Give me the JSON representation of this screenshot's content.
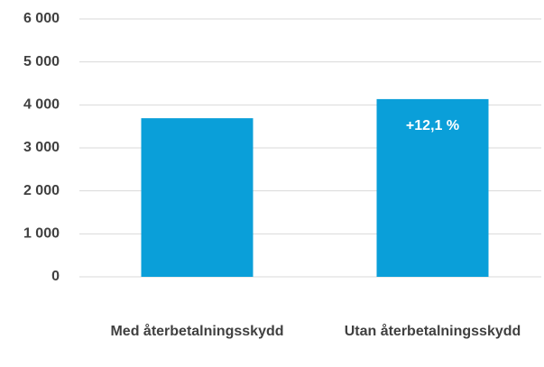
{
  "chart_data": {
    "type": "bar",
    "categories": [
      "Med återbetalningsskydd",
      "Utan återbetalningsskydd"
    ],
    "values": [
      3690,
      4135
    ],
    "color": "#0a9fd9",
    "annotations": [
      "+12,1 %"
    ],
    "ylim": [
      0,
      6000
    ],
    "yticks": [
      0,
      {
        "value": 1000,
        "label": "1 000"
      },
      {
        "value": 2000,
        "label": "2 000"
      },
      {
        "value": 3000,
        "label": "3 000"
      },
      {
        "value": 4000,
        "label": "4 000"
      },
      {
        "value": 5000,
        "label": "5 000"
      },
      {
        "value": 6000,
        "label": "6 000"
      }
    ],
    "grid": true
  }
}
